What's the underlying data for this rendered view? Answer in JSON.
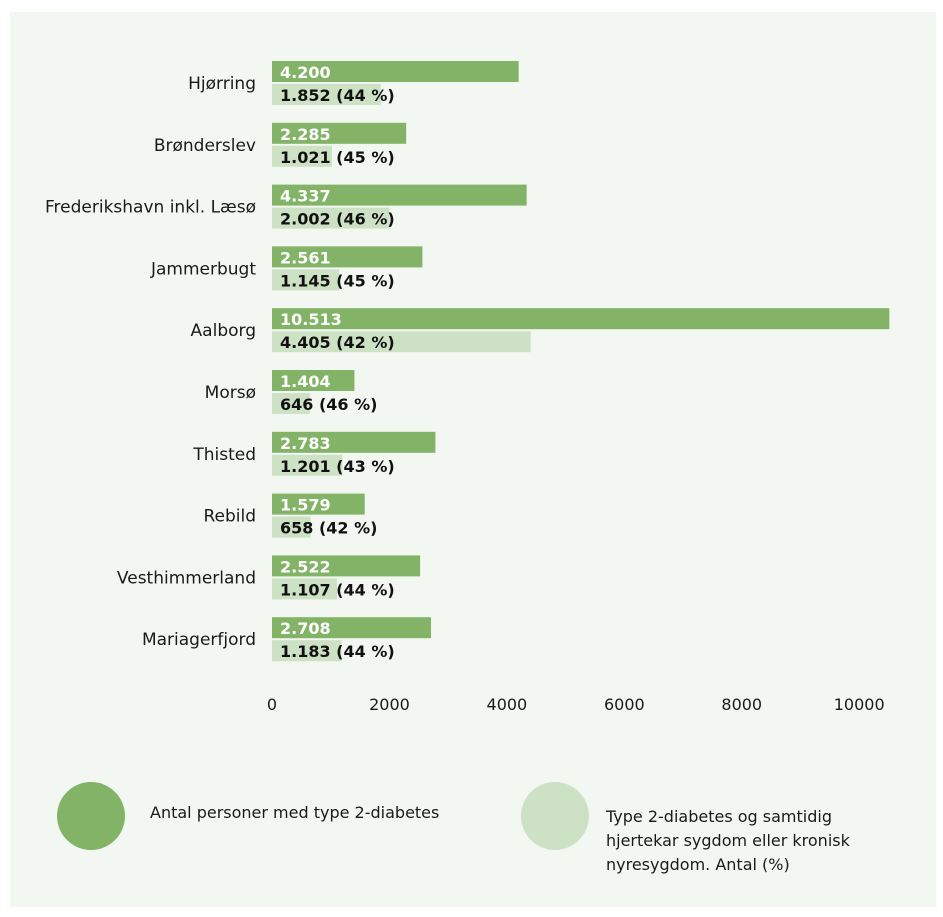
{
  "chart_data": {
    "type": "bar",
    "orientation": "horizontal",
    "categories": [
      "Hjørring",
      "Brønderslev",
      "Frederikshavn inkl. Læsø",
      "Jammerbugt",
      "Aalborg",
      "Morsø",
      "Thisted",
      "Rebild",
      "Vesthimmerland",
      "Mariagerfjord"
    ],
    "series": [
      {
        "name": "Antal personer med type 2-diabetes",
        "color": "#82b366",
        "values": [
          4200,
          2285,
          4337,
          2561,
          10513,
          1404,
          2783,
          1579,
          2522,
          2708
        ],
        "labels": [
          "4.200",
          "2.285",
          "4.337",
          "2.561",
          "10.513",
          "1.404",
          "2.783",
          "1.579",
          "2.522",
          "2.708"
        ]
      },
      {
        "name": "Type 2-diabetes og samtidig hjertekar sygdom eller kronisk nyresygdom. Antal (%)",
        "color": "#cde2c5",
        "values": [
          1852,
          1021,
          2002,
          1145,
          4405,
          646,
          1201,
          658,
          1107,
          1183
        ],
        "labels": [
          "1.852 (44 %)",
          "1.021 (45 %)",
          "2.002 (46 %)",
          "1.145 (45 %)",
          "4.405 (42 %)",
          "646 (46 %)",
          "1.201 (43 %)",
          "658 (42 %)",
          "1.107 (44 %)",
          "1.183 (44 %)"
        ]
      }
    ],
    "xticks": [
      "0",
      "2000",
      "4000",
      "6000",
      "8000",
      "10000"
    ],
    "xlim": [
      0,
      11500
    ],
    "grid": false,
    "legend": "bottom"
  },
  "legend": {
    "items": [
      {
        "label": "Antal personer med type 2-diabetes",
        "color": "#82b366"
      },
      {
        "label": "Type 2-diabetes og samtidig\nhjertekar sygdom eller kronisk\nnyresygdom. Antal (%)",
        "color": "#cde2c5"
      }
    ]
  }
}
